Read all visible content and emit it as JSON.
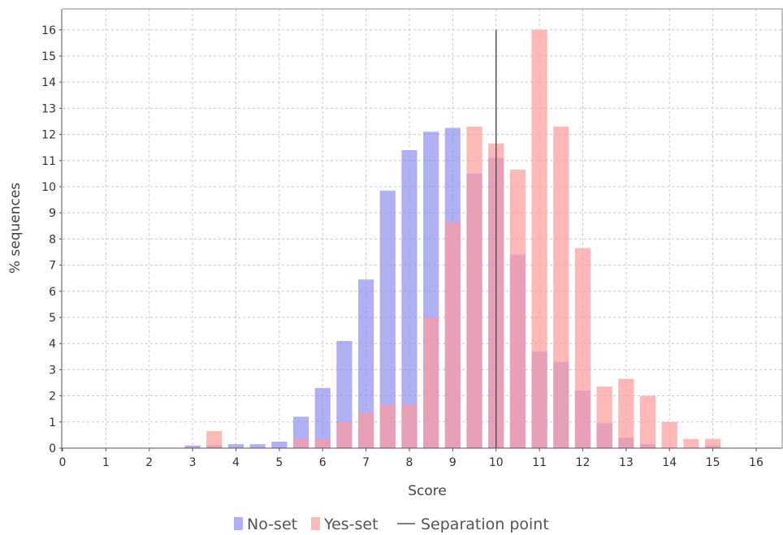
{
  "chart_data": {
    "type": "bar",
    "xlabel": "Score",
    "ylabel": "% sequences",
    "xlim": [
      0,
      16.6
    ],
    "ylim": [
      0,
      16.8
    ],
    "xticks": [
      "0",
      "1",
      "2",
      "3",
      "4",
      "5",
      "6",
      "7",
      "8",
      "9",
      "10",
      "11",
      "12",
      "13",
      "14",
      "15",
      "16"
    ],
    "yticks": [
      "0",
      "1",
      "2",
      "3",
      "4",
      "5",
      "6",
      "7",
      "8",
      "9",
      "10",
      "11",
      "12",
      "13",
      "14",
      "15",
      "16"
    ],
    "grid": true,
    "legend_position": "bottom-center",
    "x": [
      3.0,
      3.5,
      4.0,
      4.5,
      5.0,
      5.5,
      6.0,
      6.5,
      7.0,
      7.5,
      8.0,
      8.5,
      9.0,
      9.5,
      10.0,
      10.5,
      11.0,
      11.5,
      12.0,
      12.5,
      13.0,
      13.5,
      14.0,
      14.5,
      15.0
    ],
    "series": [
      {
        "name": "No-set",
        "color": "#8f8ff0",
        "values": [
          0.1,
          0.1,
          0.15,
          0.15,
          0.25,
          1.2,
          2.3,
          4.1,
          6.45,
          9.85,
          11.4,
          12.1,
          12.25,
          10.5,
          11.1,
          7.4,
          3.7,
          3.3,
          2.2,
          0.95,
          0.4,
          0.15,
          0.0,
          0.0,
          0.1
        ]
      },
      {
        "name": "Yes-set",
        "color": "#ff9a9a",
        "values": [
          0.0,
          0.65,
          0.0,
          0.0,
          0.0,
          0.35,
          0.35,
          1.0,
          1.35,
          1.65,
          1.65,
          5.0,
          8.65,
          12.3,
          11.65,
          10.65,
          16.0,
          12.3,
          7.65,
          2.35,
          2.65,
          2.0,
          1.0,
          0.35,
          0.35
        ]
      }
    ],
    "reference_line": {
      "name": "Separation point",
      "x": 10.0,
      "y_top": 16.0,
      "color": "#555555"
    }
  }
}
